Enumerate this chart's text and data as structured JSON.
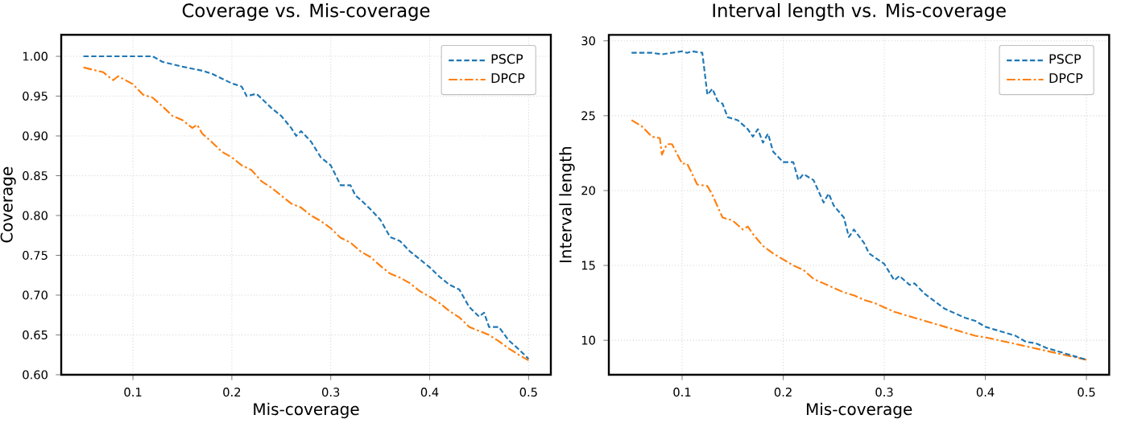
{
  "chart_data": [
    {
      "type": "line",
      "title": "Coverage vs. Mis-coverage",
      "xlabel": "Mis-coverage",
      "ylabel": "Coverage",
      "xlim": [
        0.0275,
        0.5225
      ],
      "ylim": [
        0.6,
        1.027
      ],
      "xticks": [
        0.1,
        0.2,
        0.3,
        0.4,
        0.5
      ],
      "yticks": [
        {
          "value": 0.6,
          "label": "0.60"
        },
        {
          "value": 0.65,
          "label": "0.65"
        },
        {
          "value": 0.7,
          "label": "0.70"
        },
        {
          "value": 0.75,
          "label": "0.75"
        },
        {
          "value": 0.8,
          "label": "0.80"
        },
        {
          "value": 0.85,
          "label": "0.85"
        },
        {
          "value": 0.9,
          "label": "0.90"
        },
        {
          "value": 0.95,
          "label": "0.95"
        },
        {
          "value": 1.0,
          "label": "1.00"
        }
      ],
      "grid": true,
      "legend": "top right",
      "series": [
        {
          "name": "PSCP",
          "color": "#1f77b4",
          "line_style": "dashed",
          "x": [
            0.05,
            0.1,
            0.12,
            0.13,
            0.15,
            0.17,
            0.18,
            0.2,
            0.21,
            0.215,
            0.225,
            0.24,
            0.25,
            0.26,
            0.265,
            0.27,
            0.28,
            0.29,
            0.3,
            0.31,
            0.32,
            0.325,
            0.33,
            0.34,
            0.35,
            0.36,
            0.37,
            0.38,
            0.39,
            0.4,
            0.41,
            0.42,
            0.43,
            0.44,
            0.45,
            0.455,
            0.46,
            0.47,
            0.48,
            0.49,
            0.5
          ],
          "values": [
            1.0,
            1.0,
            1.0,
            0.993,
            0.987,
            0.982,
            0.978,
            0.966,
            0.962,
            0.95,
            0.953,
            0.935,
            0.925,
            0.91,
            0.9,
            0.906,
            0.893,
            0.873,
            0.863,
            0.838,
            0.838,
            0.825,
            0.82,
            0.808,
            0.795,
            0.773,
            0.768,
            0.755,
            0.745,
            0.735,
            0.723,
            0.713,
            0.707,
            0.685,
            0.673,
            0.678,
            0.66,
            0.66,
            0.643,
            0.632,
            0.62
          ]
        },
        {
          "name": "DPCP",
          "color": "#ff7f0e",
          "line_style": "dashdot",
          "x": [
            0.05,
            0.06,
            0.07,
            0.08,
            0.085,
            0.1,
            0.11,
            0.12,
            0.13,
            0.14,
            0.15,
            0.16,
            0.165,
            0.17,
            0.18,
            0.19,
            0.2,
            0.21,
            0.22,
            0.23,
            0.24,
            0.25,
            0.26,
            0.27,
            0.28,
            0.29,
            0.3,
            0.31,
            0.32,
            0.33,
            0.34,
            0.35,
            0.36,
            0.37,
            0.38,
            0.39,
            0.4,
            0.41,
            0.42,
            0.43,
            0.44,
            0.45,
            0.46,
            0.47,
            0.48,
            0.49,
            0.5
          ],
          "values": [
            0.986,
            0.983,
            0.98,
            0.97,
            0.975,
            0.965,
            0.952,
            0.948,
            0.937,
            0.925,
            0.92,
            0.91,
            0.914,
            0.903,
            0.892,
            0.88,
            0.873,
            0.863,
            0.857,
            0.843,
            0.835,
            0.825,
            0.815,
            0.81,
            0.8,
            0.793,
            0.784,
            0.772,
            0.766,
            0.755,
            0.748,
            0.737,
            0.727,
            0.722,
            0.715,
            0.705,
            0.698,
            0.69,
            0.68,
            0.672,
            0.66,
            0.655,
            0.65,
            0.642,
            0.633,
            0.625,
            0.618
          ]
        }
      ]
    },
    {
      "type": "line",
      "title": "Interval length vs. Mis-coverage",
      "xlabel": "Mis-coverage",
      "ylabel": "Interval length",
      "xlim": [
        0.0275,
        0.5225
      ],
      "ylim": [
        7.7,
        30.4
      ],
      "xticks": [
        0.1,
        0.2,
        0.3,
        0.4,
        0.5
      ],
      "yticks": [
        10,
        15,
        20,
        25,
        30
      ],
      "grid": true,
      "legend": "top right",
      "series": [
        {
          "name": "PSCP",
          "color": "#1f77b4",
          "line_style": "dashed",
          "x": [
            0.05,
            0.07,
            0.08,
            0.1,
            0.105,
            0.11,
            0.12,
            0.125,
            0.13,
            0.135,
            0.14,
            0.145,
            0.155,
            0.165,
            0.17,
            0.175,
            0.18,
            0.185,
            0.19,
            0.2,
            0.21,
            0.215,
            0.22,
            0.23,
            0.24,
            0.245,
            0.25,
            0.26,
            0.265,
            0.27,
            0.28,
            0.285,
            0.3,
            0.31,
            0.315,
            0.32,
            0.325,
            0.33,
            0.34,
            0.35,
            0.36,
            0.37,
            0.38,
            0.39,
            0.4,
            0.41,
            0.42,
            0.43,
            0.44,
            0.45,
            0.46,
            0.47,
            0.48,
            0.49,
            0.5
          ],
          "values": [
            29.2,
            29.2,
            29.1,
            29.3,
            29.2,
            29.3,
            29.2,
            26.4,
            26.8,
            26.0,
            25.8,
            24.9,
            24.7,
            24.1,
            23.6,
            24.1,
            23.2,
            23.8,
            22.6,
            21.9,
            21.9,
            20.7,
            21.1,
            20.7,
            19.2,
            19.8,
            19.0,
            18.2,
            16.9,
            17.4,
            16.5,
            15.8,
            15.1,
            14.0,
            14.3,
            14.0,
            13.7,
            13.8,
            13.1,
            12.6,
            12.1,
            11.8,
            11.5,
            11.3,
            10.9,
            10.7,
            10.5,
            10.3,
            9.9,
            9.8,
            9.5,
            9.3,
            9.1,
            8.9,
            8.7
          ]
        },
        {
          "name": "DPCP",
          "color": "#ff7f0e",
          "line_style": "dashdot",
          "x": [
            0.05,
            0.06,
            0.07,
            0.078,
            0.08,
            0.085,
            0.09,
            0.1,
            0.105,
            0.115,
            0.125,
            0.13,
            0.14,
            0.15,
            0.16,
            0.165,
            0.17,
            0.18,
            0.19,
            0.2,
            0.21,
            0.22,
            0.23,
            0.24,
            0.25,
            0.26,
            0.27,
            0.28,
            0.29,
            0.3,
            0.31,
            0.32,
            0.33,
            0.34,
            0.35,
            0.36,
            0.37,
            0.38,
            0.39,
            0.4,
            0.42,
            0.44,
            0.46,
            0.48,
            0.5
          ],
          "values": [
            24.7,
            24.3,
            23.6,
            23.5,
            22.4,
            23.1,
            23.1,
            21.8,
            21.8,
            20.4,
            20.3,
            19.7,
            18.2,
            18.0,
            17.4,
            17.6,
            17.1,
            16.3,
            15.8,
            15.4,
            15.0,
            14.7,
            14.1,
            13.8,
            13.5,
            13.2,
            13.0,
            12.7,
            12.5,
            12.2,
            11.9,
            11.7,
            11.5,
            11.3,
            11.1,
            10.9,
            10.7,
            10.5,
            10.3,
            10.2,
            9.9,
            9.6,
            9.3,
            9.0,
            8.7
          ]
        }
      ]
    }
  ]
}
